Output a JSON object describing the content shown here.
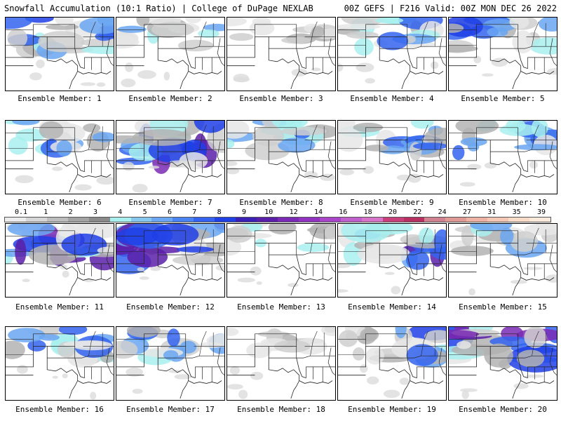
{
  "header": {
    "left": "Snowfall Accumulation (10:1 Ratio) | College of DuPage NEXLAB",
    "right": "00Z GEFS | F216 Valid: 00Z MON DEC 26 2022"
  },
  "legend": {
    "labels": [
      "0.1",
      "1",
      "2",
      "3",
      "4",
      "5",
      "6",
      "7",
      "8",
      "9",
      "10",
      "12",
      "14",
      "16",
      "18",
      "20",
      "22",
      "24",
      "27",
      "31",
      "35",
      "39"
    ],
    "colors": [
      "#ececec",
      "#d6d6d6",
      "#bdbdbd",
      "#a3a3a3",
      "#8a8a8a",
      "#a8f0ee",
      "#86c7f0",
      "#6aa6f2",
      "#4a84f2",
      "#3464ef",
      "#2040e6",
      "#3a20b4",
      "#5a1fa8",
      "#7a2ab4",
      "#9232c0",
      "#a845c8",
      "#c060cc",
      "#d874c8",
      "#c8407a",
      "#b82f62",
      "#d08290",
      "#e09a96",
      "#eeb2a4",
      "#f4c6b4",
      "#f8dcc8",
      "#fbeadc"
    ]
  },
  "members": [
    {
      "label": "Ensemble Member: 1",
      "intensity": 0.65
    },
    {
      "label": "Ensemble Member: 2",
      "intensity": 0.45
    },
    {
      "label": "Ensemble Member: 3",
      "intensity": 0.15
    },
    {
      "label": "Ensemble Member: 4",
      "intensity": 0.5
    },
    {
      "label": "Ensemble Member: 5",
      "intensity": 0.6
    },
    {
      "label": "Ensemble Member: 6",
      "intensity": 0.5
    },
    {
      "label": "Ensemble Member: 7",
      "intensity": 1.0
    },
    {
      "label": "Ensemble Member: 8",
      "intensity": 0.55
    },
    {
      "label": "Ensemble Member: 9",
      "intensity": 0.6
    },
    {
      "label": "Ensemble Member: 10",
      "intensity": 0.6
    },
    {
      "label": "Ensemble Member: 11",
      "intensity": 0.9
    },
    {
      "label": "Ensemble Member: 12",
      "intensity": 0.85
    },
    {
      "label": "Ensemble Member: 13",
      "intensity": 0.2
    },
    {
      "label": "Ensemble Member: 14",
      "intensity": 0.85
    },
    {
      "label": "Ensemble Member: 15",
      "intensity": 0.45
    },
    {
      "label": "Ensemble Member: 16",
      "intensity": 0.55
    },
    {
      "label": "Ensemble Member: 17",
      "intensity": 0.5
    },
    {
      "label": "Ensemble Member: 18",
      "intensity": 0.2
    },
    {
      "label": "Ensemble Member: 19",
      "intensity": 0.6
    },
    {
      "label": "Ensemble Member: 20",
      "intensity": 0.95
    }
  ]
}
